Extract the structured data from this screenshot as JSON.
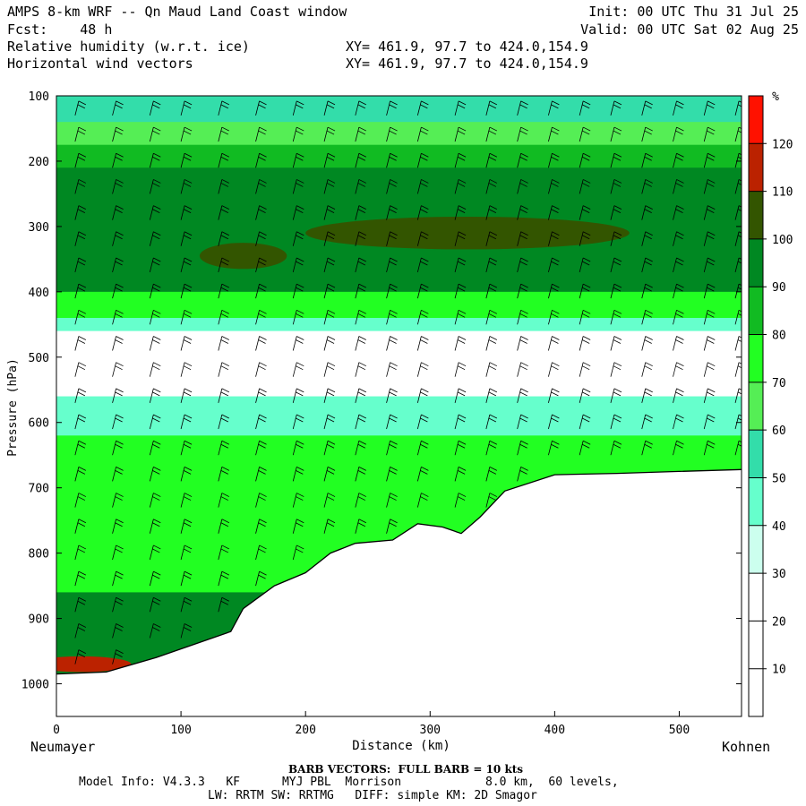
{
  "header": {
    "title": "AMPS 8-km WRF -- Qn Maud Land Coast window",
    "forecast": "Fcst:    48 h",
    "field1": "Relative humidity (w.r.t. ice)",
    "field2": "Horizontal wind vectors",
    "init": "Init: 00 UTC Thu 31 Jul 25",
    "valid": "Valid: 00 UTC Sat 02 Aug 25",
    "xy1": "XY= 461.9, 97.7 to 424.0,154.9",
    "xy2": "XY= 461.9, 97.7 to 424.0,154.9"
  },
  "footer": {
    "left_station": "Neumayer",
    "right_station": "Kohnen",
    "barb_note": "BARB VECTORS:  FULL BARB = 10 kts",
    "model_line1": "Model Info: V4.3.3   KF      MYJ PBL  Morrison            8.0 km,  60 levels,",
    "model_line2": "LW: RRTM SW: RRTMG   DIFF: simple KM: 2D Smagor"
  },
  "chart_data": {
    "type": "heatmap",
    "title": "Relative humidity (w.r.t. ice)",
    "xlabel": "Distance (km)",
    "ylabel": "Pressure (hPa)",
    "xlim": [
      0,
      550
    ],
    "ylim": [
      1050,
      100
    ],
    "x_ticks": [
      0,
      100,
      200,
      300,
      400,
      500
    ],
    "y_ticks": [
      100,
      200,
      300,
      400,
      500,
      600,
      700,
      800,
      900,
      1000
    ],
    "colorbar": {
      "unit": "%",
      "ticks": [
        10,
        20,
        30,
        40,
        50,
        60,
        70,
        80,
        90,
        100,
        110,
        120
      ],
      "bins": [
        {
          "from": 0,
          "to": 10,
          "color": "#ffffff"
        },
        {
          "from": 10,
          "to": 20,
          "color": "#ffffff"
        },
        {
          "from": 20,
          "to": 30,
          "color": "#ffffff"
        },
        {
          "from": 30,
          "to": 40,
          "color": "#ccffee"
        },
        {
          "from": 40,
          "to": 50,
          "color": "#66ffcc"
        },
        {
          "from": 50,
          "to": 60,
          "color": "#33ddaa"
        },
        {
          "from": 60,
          "to": 70,
          "color": "#55ee55"
        },
        {
          "from": 70,
          "to": 80,
          "color": "#22ff22"
        },
        {
          "from": 80,
          "to": 90,
          "color": "#11bb22"
        },
        {
          "from": 90,
          "to": 100,
          "color": "#008822"
        },
        {
          "from": 100,
          "to": 110,
          "color": "#335500"
        },
        {
          "from": 110,
          "to": 120,
          "color": "#bb2200"
        },
        {
          "from": 120,
          "to": 130,
          "color": "#ff1100"
        }
      ]
    },
    "terrain_surface": [
      {
        "x": 0,
        "p": 985
      },
      {
        "x": 40,
        "p": 982
      },
      {
        "x": 80,
        "p": 960
      },
      {
        "x": 110,
        "p": 940
      },
      {
        "x": 140,
        "p": 920
      },
      {
        "x": 150,
        "p": 885
      },
      {
        "x": 175,
        "p": 850
      },
      {
        "x": 200,
        "p": 830
      },
      {
        "x": 220,
        "p": 800
      },
      {
        "x": 240,
        "p": 785
      },
      {
        "x": 270,
        "p": 780
      },
      {
        "x": 290,
        "p": 755
      },
      {
        "x": 310,
        "p": 760
      },
      {
        "x": 325,
        "p": 770
      },
      {
        "x": 340,
        "p": 745
      },
      {
        "x": 360,
        "p": 705
      },
      {
        "x": 400,
        "p": 680
      },
      {
        "x": 450,
        "p": 678
      },
      {
        "x": 500,
        "p": 675
      },
      {
        "x": 550,
        "p": 672
      }
    ],
    "rh_layers": [
      {
        "p_top": 100,
        "p_bottom": 140,
        "rh": 55
      },
      {
        "p_top": 140,
        "p_bottom": 175,
        "rh": 65
      },
      {
        "p_top": 175,
        "p_bottom": 210,
        "rh": 80
      },
      {
        "p_top": 210,
        "p_bottom": 400,
        "rh": 95
      },
      {
        "p_top": 400,
        "p_bottom": 440,
        "rh": 75
      },
      {
        "p_top": 440,
        "p_bottom": 460,
        "rh": 45
      },
      {
        "p_top": 460,
        "p_bottom": 560,
        "rh": 15
      },
      {
        "p_top": 560,
        "p_bottom": 620,
        "rh": 45
      },
      {
        "p_top": 620,
        "p_bottom": 860,
        "rh": 75
      },
      {
        "p_top": 860,
        "p_bottom": 985,
        "rh": 90
      }
    ],
    "rh_blobs": [
      {
        "x": 330,
        "p": 310,
        "rx": 130,
        "rp": 25,
        "rh": 102
      },
      {
        "x": 150,
        "p": 345,
        "rx": 35,
        "rp": 20,
        "rh": 102
      },
      {
        "x": 20,
        "p": 970,
        "rx": 40,
        "rp": 12,
        "rh": 115
      }
    ],
    "barb_columns_x": [
      15,
      45,
      75,
      100,
      130,
      160,
      190,
      215,
      240,
      265,
      290,
      320,
      345,
      370,
      395,
      420,
      445,
      470,
      495,
      520,
      545
    ],
    "barb_levels_p": [
      130,
      170,
      210,
      250,
      290,
      330,
      370,
      410,
      450,
      490,
      530,
      570,
      610,
      650,
      690,
      730,
      770,
      810,
      850,
      890,
      930,
      970
    ]
  }
}
